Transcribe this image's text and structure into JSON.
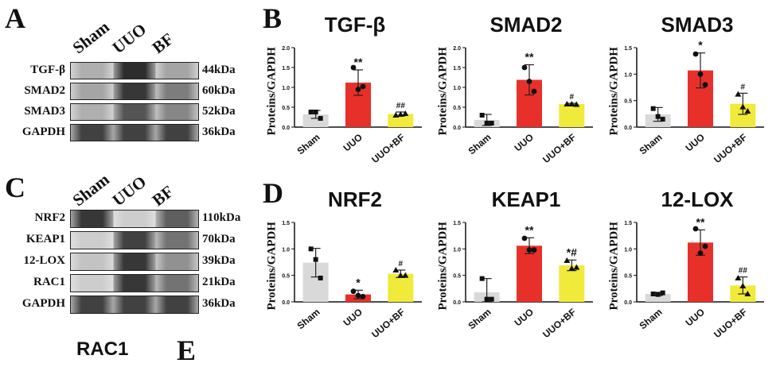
{
  "panels": {
    "a_letter": "A",
    "b_letter": "B",
    "c_letter": "C",
    "d_letter": "D",
    "e_letter": "E"
  },
  "blot_a": {
    "lanes": [
      "Sham",
      "UUO",
      "BF"
    ],
    "rows": [
      {
        "label": "TGF-β",
        "kda": "44kDa",
        "intensity": [
          0.3,
          0.95,
          0.35
        ]
      },
      {
        "label": "SMAD2",
        "kda": "60kDa",
        "intensity": [
          0.35,
          0.9,
          0.55
        ]
      },
      {
        "label": "SMAD3",
        "kda": "52kDa",
        "intensity": [
          0.3,
          0.75,
          0.5
        ]
      },
      {
        "label": "GAPDH",
        "kda": "36kDa",
        "intensity": [
          0.85,
          0.85,
          0.85
        ]
      }
    ]
  },
  "blot_c": {
    "lanes": [
      "Sham",
      "UUO",
      "BF"
    ],
    "rows": [
      {
        "label": "NRF2",
        "kda": "110kDa",
        "intensity": [
          0.9,
          0.15,
          0.7
        ]
      },
      {
        "label": "KEAP1",
        "kda": "70kDa",
        "intensity": [
          0.15,
          0.85,
          0.6
        ]
      },
      {
        "label": "12-LOX",
        "kda": "39kDa",
        "intensity": [
          0.2,
          0.9,
          0.45
        ]
      },
      {
        "label": "RAC1",
        "kda": "21kDa",
        "intensity": [
          0.15,
          0.9,
          0.6
        ]
      },
      {
        "label": "GAPDH",
        "kda": "36kDa",
        "intensity": [
          0.85,
          0.85,
          0.85
        ]
      }
    ]
  },
  "e_partial_title": "RAC1",
  "colors": {
    "sham": "#d9d9d9",
    "uuo": "#e8302a",
    "bf": "#f0ea3a"
  },
  "chart_data": [
    {
      "type": "bar",
      "title": "TGF-β",
      "ylabel": "Proteins/GAPDH",
      "categories": [
        "Sham",
        "UUO",
        "UUO+BF"
      ],
      "values": [
        0.32,
        1.12,
        0.33
      ],
      "errors": [
        0.1,
        0.32,
        0.05
      ],
      "ylim": [
        0,
        2.0
      ],
      "yticks": [
        0.0,
        0.5,
        1.0,
        1.5,
        2.0
      ],
      "points": [
        [
          0.38,
          0.38,
          0.22
        ],
        [
          1.5,
          0.95,
          1.02
        ],
        [
          0.3,
          0.32,
          0.34
        ]
      ],
      "annotations": [
        "",
        "**",
        "##"
      ]
    },
    {
      "type": "bar",
      "title": "SMAD2",
      "ylabel": "Proteins/GAPDH",
      "categories": [
        "Sham",
        "UUO",
        "UUO+BF"
      ],
      "values": [
        0.18,
        1.19,
        0.58
      ],
      "errors": [
        0.14,
        0.38,
        0.02
      ],
      "ylim": [
        0,
        2.0
      ],
      "yticks": [
        0.0,
        0.5,
        1.0,
        1.5,
        2.0
      ],
      "points": [
        [
          0.3,
          0.1,
          0.1
        ],
        [
          1.5,
          1.15,
          0.9
        ],
        [
          0.58,
          0.58,
          0.57
        ]
      ],
      "annotations": [
        "",
        "**",
        "#"
      ]
    },
    {
      "type": "bar",
      "title": "SMAD3",
      "ylabel": "Proteins/GAPDH",
      "categories": [
        "Sham",
        "UUO",
        "UUO+BF"
      ],
      "values": [
        0.24,
        1.07,
        0.44
      ],
      "errors": [
        0.13,
        0.33,
        0.2
      ],
      "ylim": [
        0,
        1.5
      ],
      "yticks": [
        0.0,
        0.5,
        1.0,
        1.5
      ],
      "points": [
        [
          0.35,
          0.2,
          0.15
        ],
        [
          1.38,
          1.0,
          0.8
        ],
        [
          0.62,
          0.38,
          0.3
        ]
      ],
      "annotations": [
        "",
        "*",
        "#"
      ]
    },
    {
      "type": "bar",
      "title": "NRF2",
      "ylabel": "Proteins/GAPDH",
      "categories": [
        "Sham",
        "UUO",
        "UUO+BF"
      ],
      "values": [
        0.74,
        0.14,
        0.53
      ],
      "errors": [
        0.27,
        0.08,
        0.07
      ],
      "ylim": [
        0,
        1.5
      ],
      "yticks": [
        0.0,
        0.5,
        1.0,
        1.5
      ],
      "points": [
        [
          1.0,
          0.8,
          0.45
        ],
        [
          0.2,
          0.12,
          0.1
        ],
        [
          0.6,
          0.5,
          0.5
        ]
      ],
      "annotations": [
        "",
        "*",
        "#"
      ]
    },
    {
      "type": "bar",
      "title": "KEAP1",
      "ylabel": "Proteins/GAPDH",
      "categories": [
        "Sham",
        "UUO",
        "UUO+BF"
      ],
      "values": [
        0.18,
        1.06,
        0.69
      ],
      "errors": [
        0.26,
        0.15,
        0.1
      ],
      "ylim": [
        0,
        1.5
      ],
      "yticks": [
        0.0,
        0.5,
        1.0,
        1.5
      ],
      "points": [
        [
          0.44,
          0.05,
          0.05
        ],
        [
          1.2,
          0.98,
          0.98
        ],
        [
          0.78,
          0.63,
          0.65
        ]
      ],
      "annotations": [
        "",
        "**",
        "*#"
      ]
    },
    {
      "type": "bar",
      "title": "12-LOX",
      "ylabel": "Proteins/GAPDH",
      "categories": [
        "Sham",
        "UUO",
        "UUO+BF"
      ],
      "values": [
        0.15,
        1.12,
        0.31
      ],
      "errors": [
        0.03,
        0.24,
        0.16
      ],
      "ylim": [
        0,
        1.5
      ],
      "yticks": [
        0.0,
        0.5,
        1.0,
        1.5
      ],
      "points": [
        [
          0.15,
          0.14,
          0.17
        ],
        [
          1.38,
          0.92,
          1.05
        ],
        [
          0.45,
          0.3,
          0.15
        ]
      ],
      "annotations": [
        "",
        "**",
        "##"
      ]
    }
  ]
}
